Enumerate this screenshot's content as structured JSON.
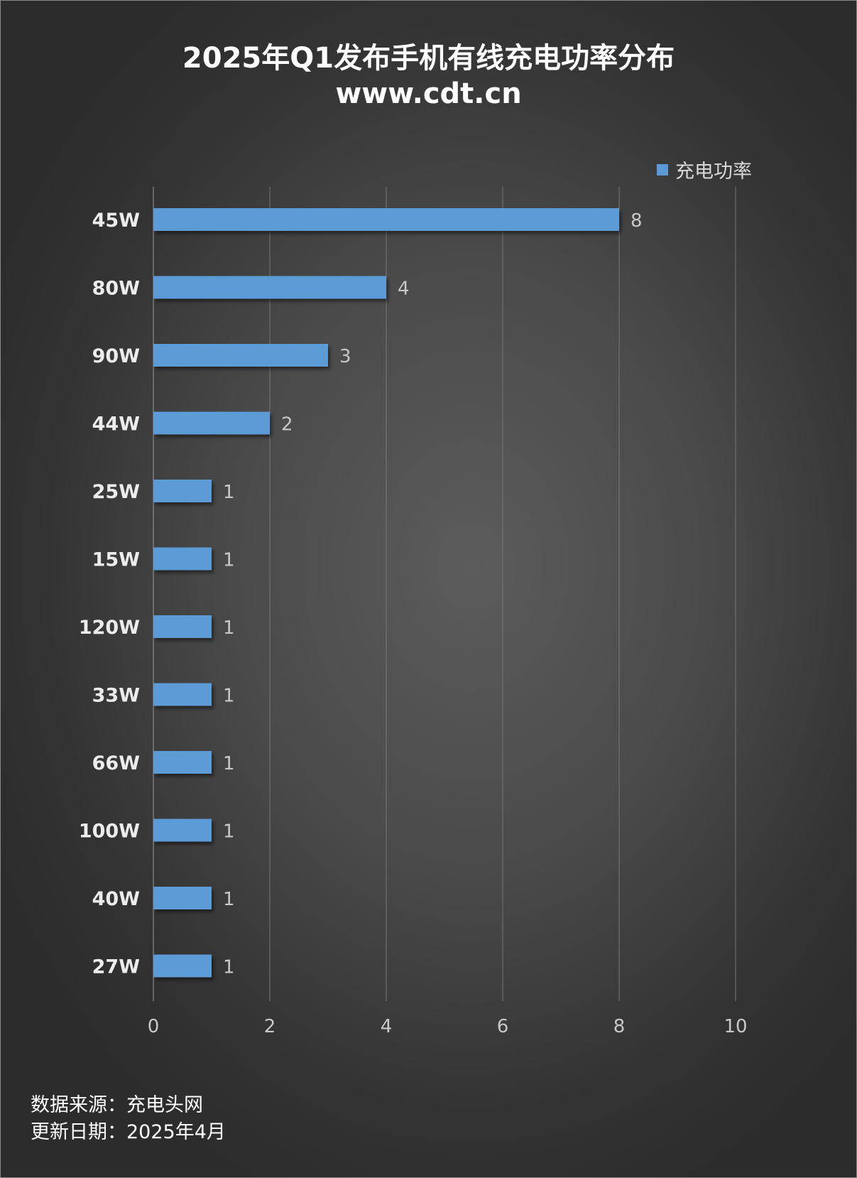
{
  "title": {
    "line1": "2025年Q1发布手机有线充电功率分布",
    "line2": "www.cdt.cn"
  },
  "legend": {
    "label": "充电功率",
    "color": "#5b9bd5"
  },
  "footer": {
    "source": "数据来源：充电头网",
    "date": "更新日期：2025年4月"
  },
  "chart_data": {
    "type": "bar",
    "orientation": "horizontal",
    "categories": [
      "45W",
      "80W",
      "90W",
      "44W",
      "25W",
      "15W",
      "120W",
      "33W",
      "66W",
      "100W",
      "40W",
      "27W"
    ],
    "series": [
      {
        "name": "充电功率",
        "values": [
          8,
          4,
          3,
          2,
          1,
          1,
          1,
          1,
          1,
          1,
          1,
          1
        ],
        "color": "#5b9bd5"
      }
    ],
    "xlim": [
      0,
      10
    ],
    "xticks": [
      0,
      2,
      4,
      6,
      8,
      10
    ],
    "grid": true,
    "data_labels": true,
    "legend_position": "top-right"
  }
}
